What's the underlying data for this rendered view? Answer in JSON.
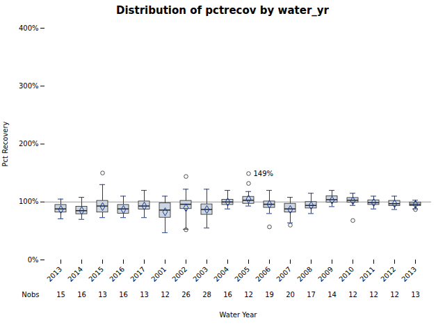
{
  "chart_data": {
    "type": "box",
    "title": "Distribution of pctrecov by water_yr",
    "xlabel": "Water Year",
    "ylabel": "Pct Recovery",
    "categories": [
      "2013",
      "2014",
      "2015",
      "2016",
      "2017",
      "2001",
      "2002",
      "2003",
      "2004",
      "2005",
      "2006",
      "2007",
      "2008",
      "2009",
      "2010",
      "2011",
      "2012",
      "2013"
    ],
    "boxes": [
      {
        "med": 0.88,
        "q1": 0.82,
        "q3": 0.95,
        "whislo": 0.71,
        "whishi": 1.05,
        "mean": 0.87,
        "fliers": []
      },
      {
        "med": 0.85,
        "q1": 0.79,
        "q3": 0.92,
        "whislo": 0.7,
        "whishi": 1.08,
        "mean": 0.85,
        "fliers": []
      },
      {
        "med": 0.93,
        "q1": 0.82,
        "q3": 1.02,
        "whislo": 0.73,
        "whishi": 1.3,
        "mean": 0.92,
        "fliers": [
          1.5
        ]
      },
      {
        "med": 0.88,
        "q1": 0.8,
        "q3": 0.95,
        "whislo": 0.73,
        "whishi": 1.1,
        "mean": 0.87,
        "fliers": []
      },
      {
        "med": 0.93,
        "q1": 0.87,
        "q3": 1.01,
        "whislo": 0.73,
        "whishi": 1.2,
        "mean": 0.93,
        "fliers": []
      },
      {
        "med": 0.86,
        "q1": 0.73,
        "q3": 0.98,
        "whislo": 0.47,
        "whishi": 1.1,
        "mean": 0.83,
        "fliers": []
      },
      {
        "med": 0.96,
        "q1": 0.88,
        "q3": 1.02,
        "whislo": 0.53,
        "whishi": 1.22,
        "mean": 0.9,
        "fliers": [
          1.44,
          0.52
        ]
      },
      {
        "med": 0.87,
        "q1": 0.78,
        "q3": 0.96,
        "whislo": 0.55,
        "whishi": 1.22,
        "mean": 0.87,
        "fliers": []
      },
      {
        "med": 1.0,
        "q1": 0.95,
        "q3": 1.04,
        "whislo": 0.88,
        "whishi": 1.2,
        "mean": 1.0,
        "fliers": []
      },
      {
        "med": 1.03,
        "q1": 0.97,
        "q3": 1.09,
        "whislo": 0.93,
        "whishi": 1.18,
        "mean": 1.05,
        "fliers": [
          1.49,
          1.32
        ]
      },
      {
        "med": 0.96,
        "q1": 0.9,
        "q3": 1.01,
        "whislo": 0.8,
        "whishi": 1.2,
        "mean": 0.96,
        "fliers": [
          0.57
        ]
      },
      {
        "med": 0.88,
        "q1": 0.82,
        "q3": 0.97,
        "whislo": 0.64,
        "whishi": 1.08,
        "mean": 0.87,
        "fliers": [
          0.6
        ]
      },
      {
        "med": 0.94,
        "q1": 0.89,
        "q3": 1.0,
        "whislo": 0.8,
        "whishi": 1.15,
        "mean": 0.94,
        "fliers": []
      },
      {
        "med": 1.04,
        "q1": 0.99,
        "q3": 1.1,
        "whislo": 0.92,
        "whishi": 1.2,
        "mean": 1.03,
        "fliers": []
      },
      {
        "med": 1.03,
        "q1": 0.99,
        "q3": 1.07,
        "whislo": 0.94,
        "whishi": 1.15,
        "mean": 1.02,
        "fliers": [
          0.68
        ]
      },
      {
        "med": 0.99,
        "q1": 0.95,
        "q3": 1.03,
        "whislo": 0.88,
        "whishi": 1.1,
        "mean": 0.99,
        "fliers": []
      },
      {
        "med": 0.97,
        "q1": 0.93,
        "q3": 1.02,
        "whislo": 0.87,
        "whishi": 1.1,
        "mean": 0.97,
        "fliers": []
      },
      {
        "med": 0.96,
        "q1": 0.93,
        "q3": 0.99,
        "whislo": 0.88,
        "whishi": 1.03,
        "mean": 0.96,
        "fliers": [
          0.87
        ]
      }
    ],
    "nobs_label": "Nobs",
    "nobs": [
      15,
      16,
      13,
      16,
      13,
      12,
      26,
      28,
      16,
      12,
      19,
      20,
      17,
      14,
      12,
      12,
      12,
      13
    ],
    "ylim": [
      0.0,
      4.0
    ],
    "yticks": [
      {
        "value": 0.0,
        "label": "0%"
      },
      {
        "value": 1.0,
        "label": "100%"
      },
      {
        "value": 2.0,
        "label": "200%"
      },
      {
        "value": 3.0,
        "label": "300%"
      },
      {
        "value": 4.0,
        "label": "400%"
      }
    ],
    "reference_line": 1.0,
    "annotations": [
      {
        "text": "149%",
        "x": "2005",
        "y": 1.49
      }
    ],
    "color": "#ccd5e0",
    "grid": false
  }
}
